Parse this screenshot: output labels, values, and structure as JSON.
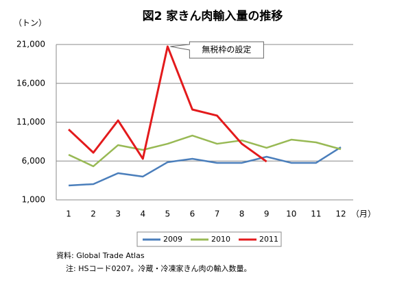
{
  "chart_data": {
    "type": "line",
    "title": "図2  家きん肉輸入量の推移",
    "y_unit": "（トン）",
    "x_unit": "（月）",
    "categories": [
      "1",
      "2",
      "3",
      "4",
      "5",
      "6",
      "7",
      "8",
      "9",
      "10",
      "11",
      "12"
    ],
    "series": [
      {
        "name": "2009",
        "color": "#4a7ebb",
        "values": [
          2850,
          3030,
          4440,
          4000,
          5850,
          6290,
          5760,
          5760,
          6550,
          5760,
          5760,
          7780
        ]
      },
      {
        "name": "2010",
        "color": "#98b954",
        "values": [
          6810,
          5320,
          8050,
          7430,
          8220,
          9280,
          8220,
          8660,
          7700,
          8750,
          8400,
          7520
        ]
      },
      {
        "name": "2011",
        "color": "#e31a1c",
        "values": [
          10070,
          7080,
          11220,
          6290,
          20740,
          12630,
          11840,
          8220,
          5930,
          null,
          null,
          null
        ]
      }
    ],
    "ylim": [
      1000,
      21000
    ],
    "yticks": [
      {
        "value": 1000,
        "label": "1,000"
      },
      {
        "value": 6000,
        "label": "6,000"
      },
      {
        "value": 11000,
        "label": "11,000"
      },
      {
        "value": 16000,
        "label": "16,000"
      },
      {
        "value": 21000,
        "label": "21,000"
      }
    ],
    "grid": true,
    "legend": "bottom",
    "annotation": "無税枠の設定",
    "notes": [
      "資料: Global Trade Atlas",
      "注: HSコード0207。冷蔵・冷凍家きん肉の輸入数量。"
    ]
  }
}
